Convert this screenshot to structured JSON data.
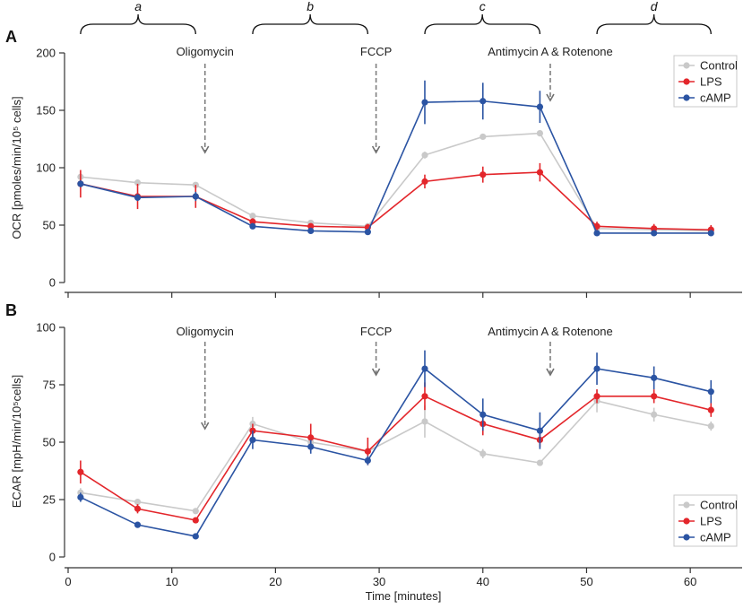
{
  "figure": {
    "panel_a_label": "A",
    "panel_b_label": "B"
  },
  "chart_data": [
    {
      "panel": "A",
      "type": "line",
      "ylabel": "OCR [pmoles/min/10⁵ cells]",
      "xlim": [
        0,
        65
      ],
      "ylim": [
        0,
        200
      ],
      "xticks": [
        0,
        10,
        20,
        30,
        40,
        50,
        60
      ],
      "yticks": [
        0,
        50,
        100,
        150,
        200
      ],
      "x": [
        1.2,
        6.7,
        12.3,
        17.8,
        23.4,
        28.9,
        34.4,
        40.0,
        45.5,
        51.0,
        56.5,
        62.0
      ],
      "series": [
        {
          "name": "Control",
          "color": "#c9c9c9",
          "values": [
            92,
            87,
            85,
            58,
            52,
            49,
            111,
            127,
            130,
            47,
            46,
            45
          ],
          "errors": [
            3,
            2,
            2,
            2,
            2,
            2,
            3,
            2,
            2,
            2,
            2,
            2
          ]
        },
        {
          "name": "LPS",
          "color": "#e3262b",
          "values": [
            86,
            75,
            75,
            53,
            49,
            48,
            88,
            94,
            96,
            49,
            47,
            46
          ],
          "errors": [
            12,
            11,
            10,
            3,
            2,
            3,
            6,
            7,
            8,
            4,
            4,
            4
          ]
        },
        {
          "name": "cAMP",
          "color": "#2b54a3",
          "values": [
            86,
            74,
            75,
            49,
            45,
            44,
            157,
            158,
            153,
            43,
            43,
            43
          ],
          "errors": [
            3,
            3,
            4,
            2,
            2,
            2,
            19,
            16,
            14,
            2,
            2,
            2
          ]
        }
      ],
      "injections": [
        {
          "label": "Oligomycin",
          "time": 13.2
        },
        {
          "label": "FCCP",
          "time": 29.7
        },
        {
          "label": "Antimycin A & Rotenone",
          "time": 46.5
        }
      ],
      "phases": [
        {
          "label": "a",
          "time_range": [
            1.2,
            12.3
          ]
        },
        {
          "label": "b",
          "time_range": [
            17.8,
            28.9
          ]
        },
        {
          "label": "c",
          "time_range": [
            34.4,
            45.5
          ]
        },
        {
          "label": "d",
          "time_range": [
            51.0,
            62.0
          ]
        }
      ],
      "legend": "top-right",
      "grid": false
    },
    {
      "panel": "B",
      "type": "line",
      "xlabel": "Time [minutes]",
      "ylabel": "ECAR [mpH/min/10⁵cells]",
      "xlim": [
        0,
        65
      ],
      "ylim": [
        0,
        100
      ],
      "xticks": [
        0,
        10,
        20,
        30,
        40,
        50,
        60
      ],
      "yticks": [
        0,
        25,
        50,
        75,
        100
      ],
      "x": [
        1.2,
        6.7,
        12.3,
        17.8,
        23.4,
        28.9,
        34.4,
        40.0,
        45.5,
        51.0,
        56.5,
        62.0
      ],
      "series": [
        {
          "name": "Control",
          "color": "#c9c9c9",
          "values": [
            28,
            24,
            20,
            58,
            50,
            46,
            59,
            45,
            41,
            68,
            62,
            57
          ],
          "errors": [
            2,
            1,
            1,
            3,
            2,
            2,
            7,
            2,
            1,
            5,
            3,
            2
          ]
        },
        {
          "name": "LPS",
          "color": "#e3262b",
          "values": [
            37,
            21,
            16,
            55,
            52,
            46,
            70,
            58,
            51,
            70,
            70,
            64
          ],
          "errors": [
            5,
            2,
            1,
            3,
            6,
            6,
            6,
            5,
            3,
            3,
            3,
            3
          ]
        },
        {
          "name": "cAMP",
          "color": "#2b54a3",
          "values": [
            26,
            14,
            9,
            51,
            48,
            42,
            82,
            62,
            55,
            82,
            78,
            72
          ],
          "errors": [
            2,
            1,
            1,
            4,
            3,
            2,
            8,
            7,
            8,
            7,
            5,
            5
          ]
        }
      ],
      "injections": [
        {
          "label": "Oligomycin",
          "time": 13.2
        },
        {
          "label": "FCCP",
          "time": 29.7
        },
        {
          "label": "Antimycin A & Rotenone",
          "time": 46.5
        }
      ],
      "legend": "bottom-right",
      "grid": false
    }
  ]
}
